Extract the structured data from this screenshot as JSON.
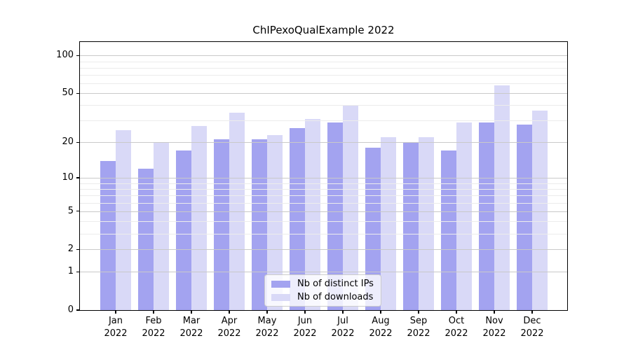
{
  "title": "ChIPexoQualExample 2022",
  "colors": {
    "background": "#ffffff",
    "series_distinct_ips": "#a3a3f0",
    "series_downloads": "#d9d9f7",
    "grid_major": "#c9c9c9",
    "grid_minor": "#ececec",
    "axis": "#000000",
    "legend_border": "#cccccc"
  },
  "legend": {
    "items": [
      {
        "label": "Nb of distinct IPs",
        "color": "#a3a3f0"
      },
      {
        "label": "Nb of downloads",
        "color": "#d9d9f7"
      }
    ]
  },
  "chart_data": {
    "type": "bar",
    "title": "ChIPexoQualExample 2022",
    "categories": [
      "Jan 2022",
      "Feb 2022",
      "Mar 2022",
      "Apr 2022",
      "May 2022",
      "Jun 2022",
      "Jul 2022",
      "Aug 2022",
      "Sep 2022",
      "Oct 2022",
      "Nov 2022",
      "Dec 2022"
    ],
    "series": [
      {
        "name": "Nb of distinct IPs",
        "color": "#a3a3f0",
        "values": [
          14,
          12,
          17,
          21,
          21,
          26,
          29,
          18,
          20,
          17,
          29,
          28
        ]
      },
      {
        "name": "Nb of downloads",
        "color": "#d9d9f7",
        "values": [
          25,
          20,
          27,
          35,
          23,
          31,
          40,
          22,
          22,
          29,
          58,
          36
        ]
      }
    ],
    "xlabel": "",
    "ylabel": "",
    "yscale": "log1p",
    "ylim": [
      0,
      128
    ],
    "yticks": [
      0,
      1,
      2,
      5,
      10,
      20,
      50,
      100
    ],
    "yticks_minor": [
      3,
      4,
      6,
      7,
      8,
      9,
      30,
      40,
      60,
      70,
      80,
      90
    ],
    "grid": "horizontal",
    "legend_position": "lower-center"
  }
}
